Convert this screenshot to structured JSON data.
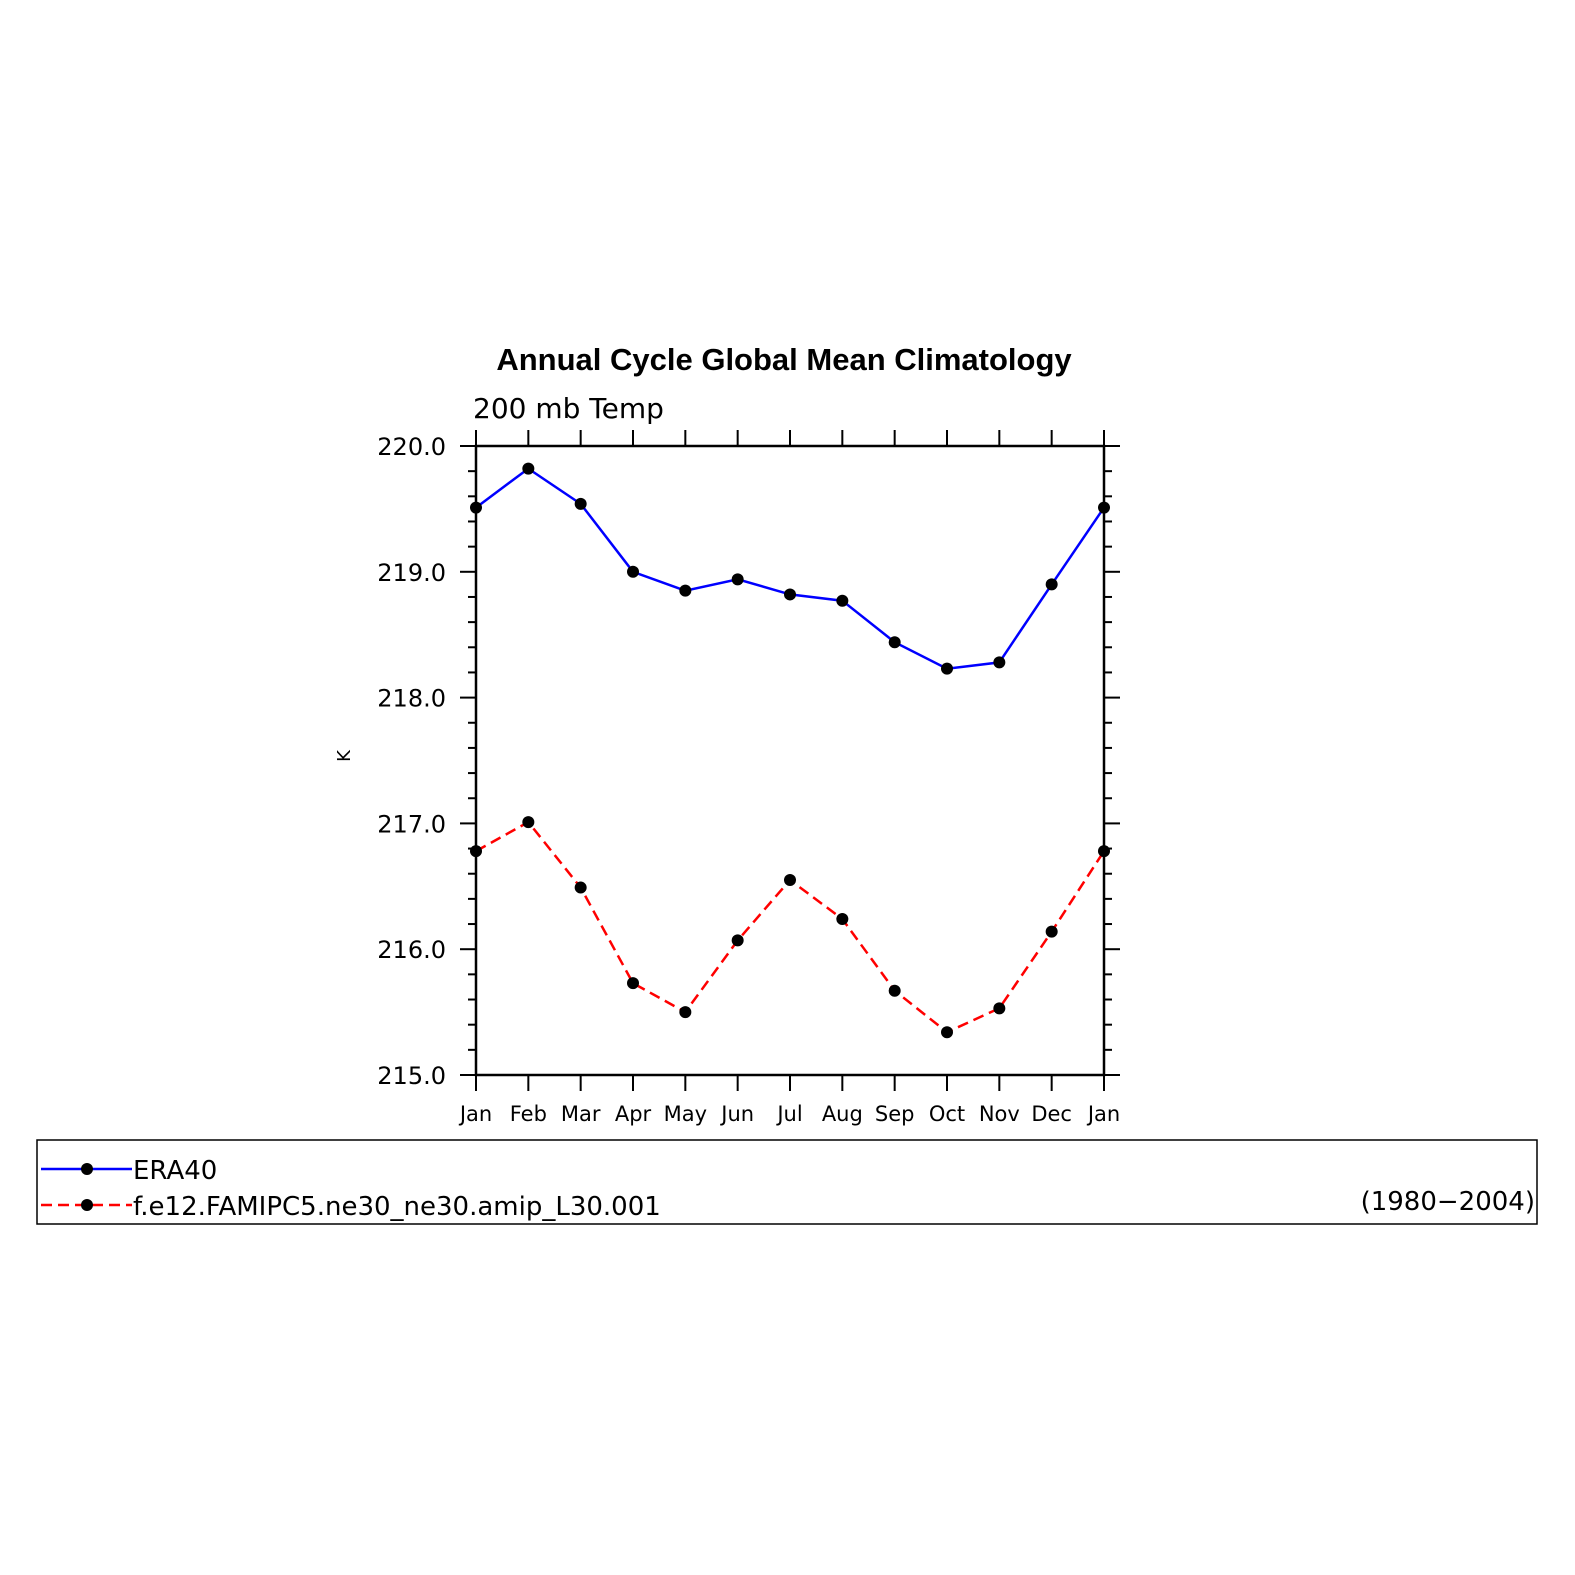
{
  "chart_data": {
    "type": "line",
    "title": "Annual Cycle Global Mean Climatology",
    "subtitle": "200 mb Temp",
    "ylabel": "K",
    "xlabel": "",
    "categories": [
      "Jan",
      "Feb",
      "Mar",
      "Apr",
      "May",
      "Jun",
      "Jul",
      "Aug",
      "Sep",
      "Oct",
      "Nov",
      "Dec",
      "Jan"
    ],
    "ylim": [
      215.0,
      220.0
    ],
    "yticks": [
      "215.0",
      "216.0",
      "217.0",
      "218.0",
      "219.0",
      "220.0"
    ],
    "grid": false,
    "legend_position": "bottom",
    "period": "(1980−2004)",
    "series": [
      {
        "name": "ERA40",
        "color": "#0000ff",
        "dash": "solid",
        "values": [
          219.51,
          219.82,
          219.54,
          219.0,
          218.85,
          218.94,
          218.82,
          218.77,
          218.44,
          218.23,
          218.28,
          218.9,
          219.51
        ]
      },
      {
        "name": "f.e12.FAMIPC5.ne30_ne30.amip_L30.001",
        "color": "#ff0000",
        "dash": "dashed",
        "values": [
          216.78,
          217.01,
          216.49,
          215.73,
          215.5,
          216.07,
          216.55,
          216.24,
          215.67,
          215.34,
          215.53,
          216.14,
          216.78
        ]
      }
    ]
  }
}
